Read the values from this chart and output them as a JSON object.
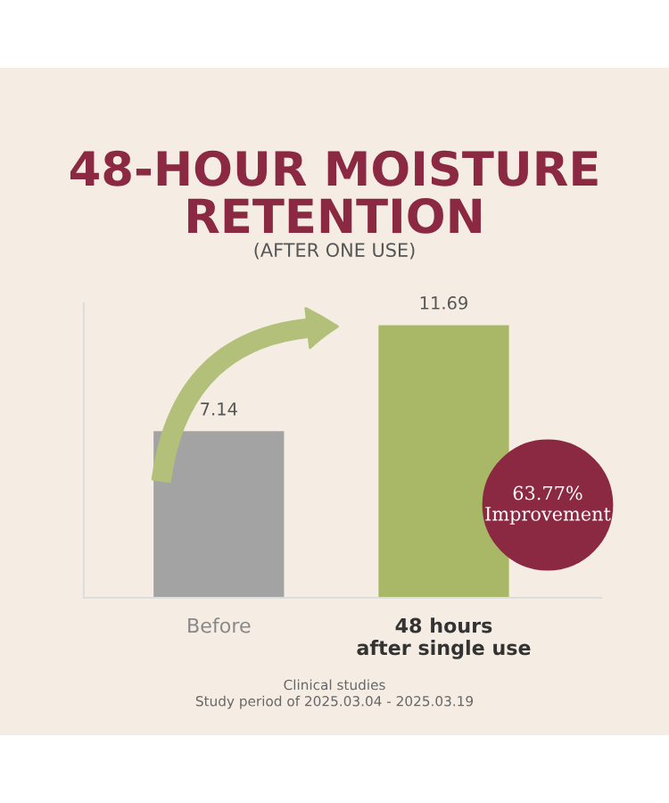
{
  "chart_data": {
    "type": "bar",
    "title": "48-HOUR MOISTURE\nRETENTION",
    "subtitle": "(AFTER ONE USE)",
    "categories": [
      "Before",
      "48 hours\nafter single use"
    ],
    "values": [
      7.14,
      11.69
    ],
    "colors": [
      "#a3a3a3",
      "#a9b866"
    ],
    "data_labels": true,
    "tick_labels": "x",
    "grid": false,
    "legend": false,
    "annotations": [
      "63.77%\nImprovement",
      "Clinical studies\nStudy period of 2025.03.04 - 2025.03.19"
    ]
  }
}
